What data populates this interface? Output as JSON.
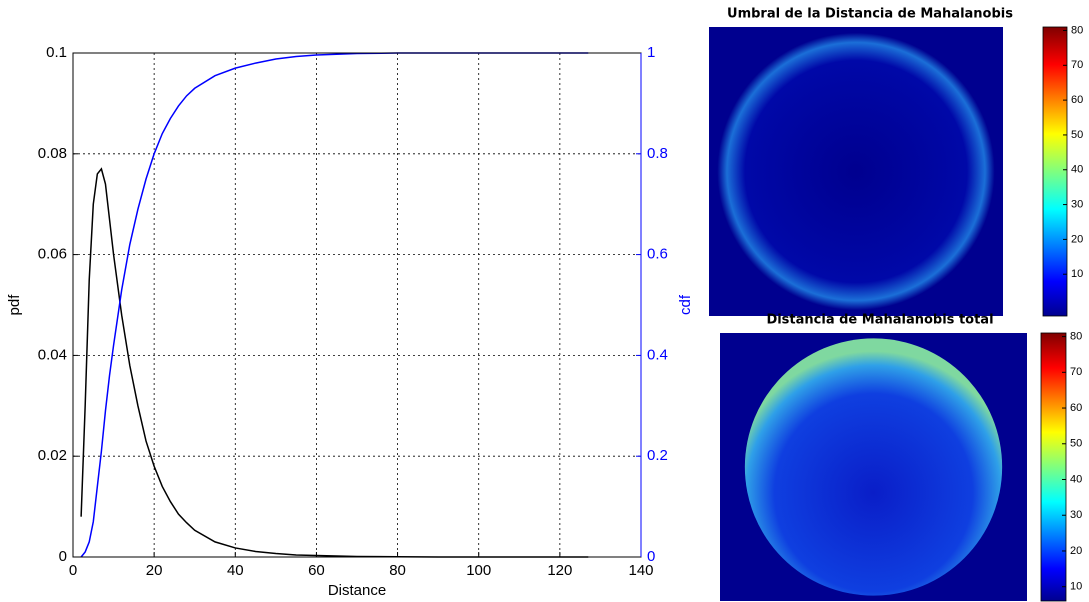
{
  "chart_data": [
    {
      "type": "line",
      "x_label": "Distance",
      "y_label": "pdf",
      "y2_label": "cdf",
      "x": [
        2,
        3,
        4,
        5,
        6,
        7,
        8,
        9,
        10,
        12,
        14,
        16,
        18,
        20,
        22,
        24,
        26,
        28,
        30,
        35,
        40,
        45,
        50,
        55,
        60,
        70,
        80,
        90,
        100,
        110,
        120,
        127
      ],
      "series": [
        {
          "name": "pdf",
          "color": "#000000",
          "values": [
            0.008,
            0.03,
            0.055,
            0.07,
            0.076,
            0.077,
            0.074,
            0.067,
            0.06,
            0.048,
            0.038,
            0.03,
            0.023,
            0.018,
            0.014,
            0.011,
            0.0085,
            0.0068,
            0.0053,
            0.003,
            0.0018,
            0.0011,
            0.0007,
            0.0004,
            0.0003,
            0.0001,
            5e-05,
            0,
            0,
            0,
            0,
            0
          ]
        },
        {
          "name": "cdf",
          "color": "#0000ff",
          "axis": "y2",
          "values": [
            0,
            0.01,
            0.03,
            0.07,
            0.14,
            0.21,
            0.29,
            0.36,
            0.42,
            0.53,
            0.62,
            0.69,
            0.75,
            0.8,
            0.84,
            0.87,
            0.895,
            0.915,
            0.93,
            0.955,
            0.97,
            0.98,
            0.988,
            0.993,
            0.996,
            0.999,
            1,
            1,
            1,
            1,
            1,
            1
          ]
        }
      ],
      "xlim": [
        0,
        140
      ],
      "xticks": [
        0,
        20,
        40,
        60,
        80,
        100,
        120,
        140
      ],
      "ylim": [
        0,
        0.1
      ],
      "yticks": [
        0,
        0.02,
        0.04,
        0.06,
        0.08,
        0.1
      ],
      "y2lim": [
        0,
        1
      ],
      "y2ticks": [
        0,
        0.2,
        0.4,
        0.6,
        0.8,
        1
      ],
      "grid": true
    },
    {
      "type": "heatmap",
      "title": "Umbral de la Distancia de Mahalanobis",
      "colormap": "jet",
      "clim": [
        -2,
        81
      ],
      "cticks": [
        10,
        20,
        30,
        40,
        50,
        60,
        70,
        80
      ]
    },
    {
      "type": "heatmap",
      "title": "Distancia de Mahalanobis total",
      "colormap": "jet",
      "clim": [
        6,
        81
      ],
      "cticks": [
        10,
        20,
        30,
        40,
        50,
        60,
        70,
        80
      ]
    }
  ]
}
